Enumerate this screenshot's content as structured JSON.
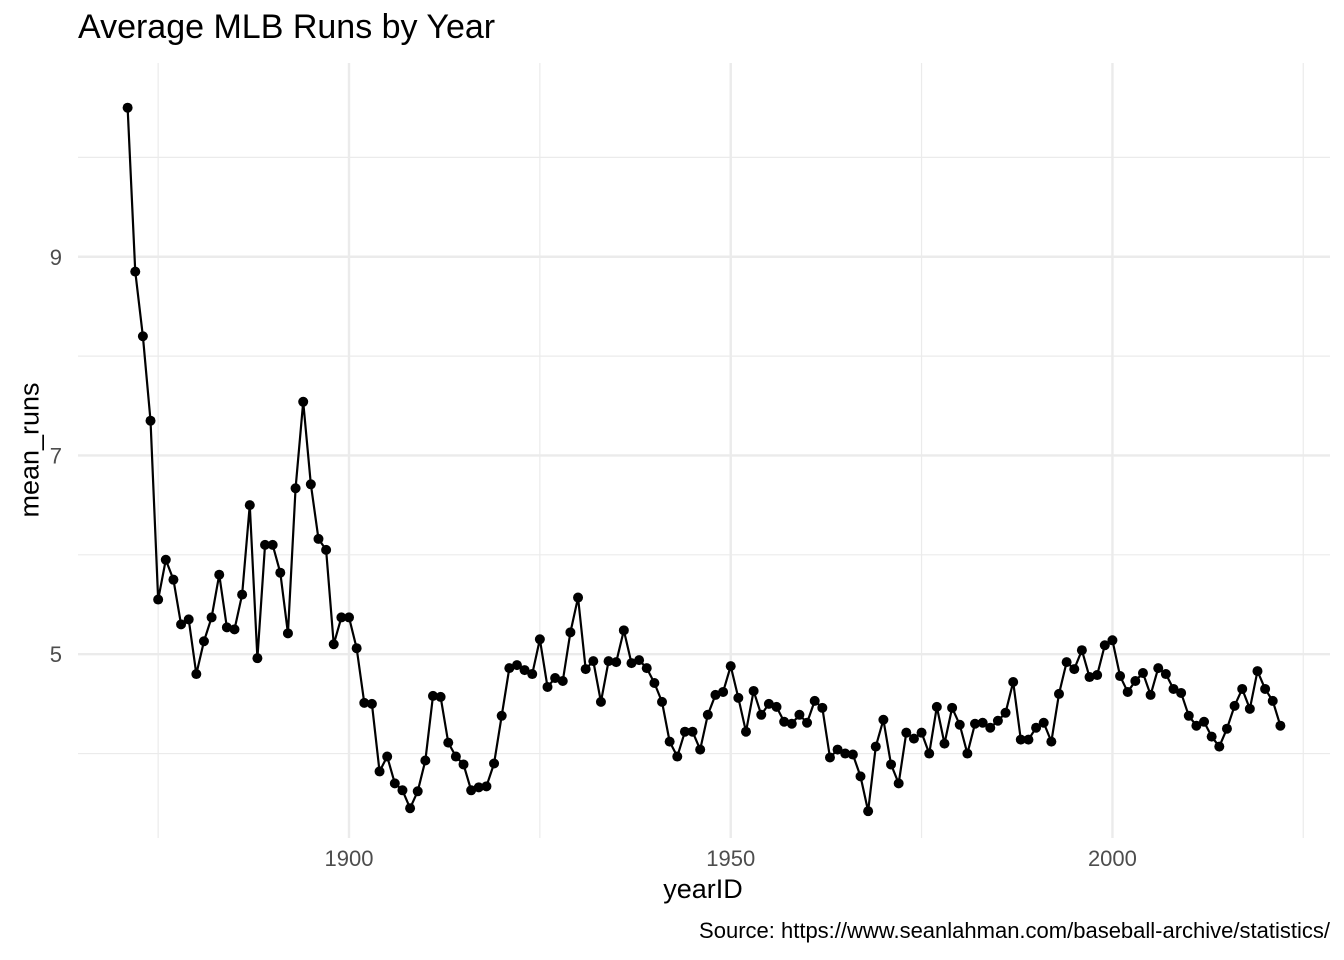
{
  "chart_data": {
    "type": "line",
    "title": "Average MLB Runs by Year",
    "caption": "Source: https://www.seanlahman.com/baseball-archive/statistics/",
    "xlabel": "yearID",
    "ylabel": "mean_runs",
    "xlim": [
      1864.5,
      2028.5
    ],
    "ylim": [
      3.15,
      10.95
    ],
    "x_ticks": [
      1900,
      1950,
      2000
    ],
    "x_tick_labels": [
      "1900",
      "1950",
      "2000"
    ],
    "y_ticks": [
      5,
      7,
      9
    ],
    "y_tick_labels": [
      "5",
      "7",
      "9"
    ],
    "grid": true,
    "series": [
      {
        "color": "#000000",
        "x": [
          1871,
          1872,
          1873,
          1874,
          1875,
          1876,
          1877,
          1878,
          1879,
          1880,
          1881,
          1882,
          1883,
          1884,
          1885,
          1886,
          1887,
          1888,
          1889,
          1890,
          1891,
          1892,
          1893,
          1894,
          1895,
          1896,
          1897,
          1898,
          1899,
          1900,
          1901,
          1902,
          1903,
          1904,
          1905,
          1906,
          1907,
          1908,
          1909,
          1910,
          1911,
          1912,
          1913,
          1914,
          1915,
          1916,
          1917,
          1918,
          1919,
          1920,
          1921,
          1922,
          1923,
          1924,
          1925,
          1926,
          1927,
          1928,
          1929,
          1930,
          1931,
          1932,
          1933,
          1934,
          1935,
          1936,
          1937,
          1938,
          1939,
          1940,
          1941,
          1942,
          1943,
          1944,
          1945,
          1946,
          1947,
          1948,
          1949,
          1950,
          1951,
          1952,
          1953,
          1954,
          1955,
          1956,
          1957,
          1958,
          1959,
          1960,
          1961,
          1962,
          1963,
          1964,
          1965,
          1966,
          1967,
          1968,
          1969,
          1970,
          1971,
          1972,
          1973,
          1974,
          1975,
          1976,
          1977,
          1978,
          1979,
          1980,
          1981,
          1982,
          1983,
          1984,
          1985,
          1986,
          1987,
          1988,
          1989,
          1990,
          1991,
          1992,
          1993,
          1994,
          1995,
          1996,
          1997,
          1998,
          1999,
          2000,
          2001,
          2002,
          2003,
          2004,
          2005,
          2006,
          2007,
          2008,
          2009,
          2010,
          2011,
          2012,
          2013,
          2014,
          2015,
          2016,
          2017,
          2018,
          2019,
          2020,
          2021,
          2022
        ],
        "y": [
          10.5,
          8.85,
          8.2,
          7.35,
          5.55,
          5.95,
          5.75,
          5.3,
          5.35,
          4.8,
          5.13,
          5.37,
          5.8,
          5.27,
          5.25,
          5.6,
          6.5,
          4.96,
          6.1,
          6.1,
          5.82,
          5.21,
          6.67,
          7.54,
          6.71,
          6.16,
          6.05,
          5.1,
          5.37,
          5.37,
          5.06,
          4.51,
          4.5,
          3.82,
          3.97,
          3.7,
          3.63,
          3.45,
          3.62,
          3.93,
          4.58,
          4.57,
          4.11,
          3.97,
          3.89,
          3.63,
          3.66,
          3.67,
          3.9,
          4.38,
          4.86,
          4.89,
          4.84,
          4.8,
          5.15,
          4.67,
          4.76,
          4.73,
          5.22,
          5.57,
          4.85,
          4.93,
          4.52,
          4.93,
          4.92,
          5.24,
          4.91,
          4.94,
          4.86,
          4.71,
          4.52,
          4.12,
          3.97,
          4.22,
          4.22,
          4.04,
          4.39,
          4.59,
          4.62,
          4.88,
          4.56,
          4.22,
          4.63,
          4.39,
          4.5,
          4.47,
          4.32,
          4.3,
          4.39,
          4.31,
          4.53,
          4.46,
          3.96,
          4.04,
          4.0,
          3.99,
          3.77,
          3.42,
          4.07,
          4.34,
          3.89,
          3.7,
          4.21,
          4.15,
          4.21,
          4.0,
          4.47,
          4.1,
          4.46,
          4.29,
          4.0,
          4.3,
          4.31,
          4.26,
          4.33,
          4.41,
          4.72,
          4.14,
          4.14,
          4.26,
          4.31,
          4.12,
          4.6,
          4.92,
          4.85,
          5.04,
          4.77,
          4.79,
          5.09,
          5.14,
          4.78,
          4.62,
          4.73,
          4.81,
          4.59,
          4.86,
          4.8,
          4.65,
          4.61,
          4.38,
          4.28,
          4.32,
          4.17,
          4.07,
          4.25,
          4.48,
          4.65,
          4.45,
          4.83,
          4.65,
          4.53,
          4.28
        ]
      }
    ]
  }
}
